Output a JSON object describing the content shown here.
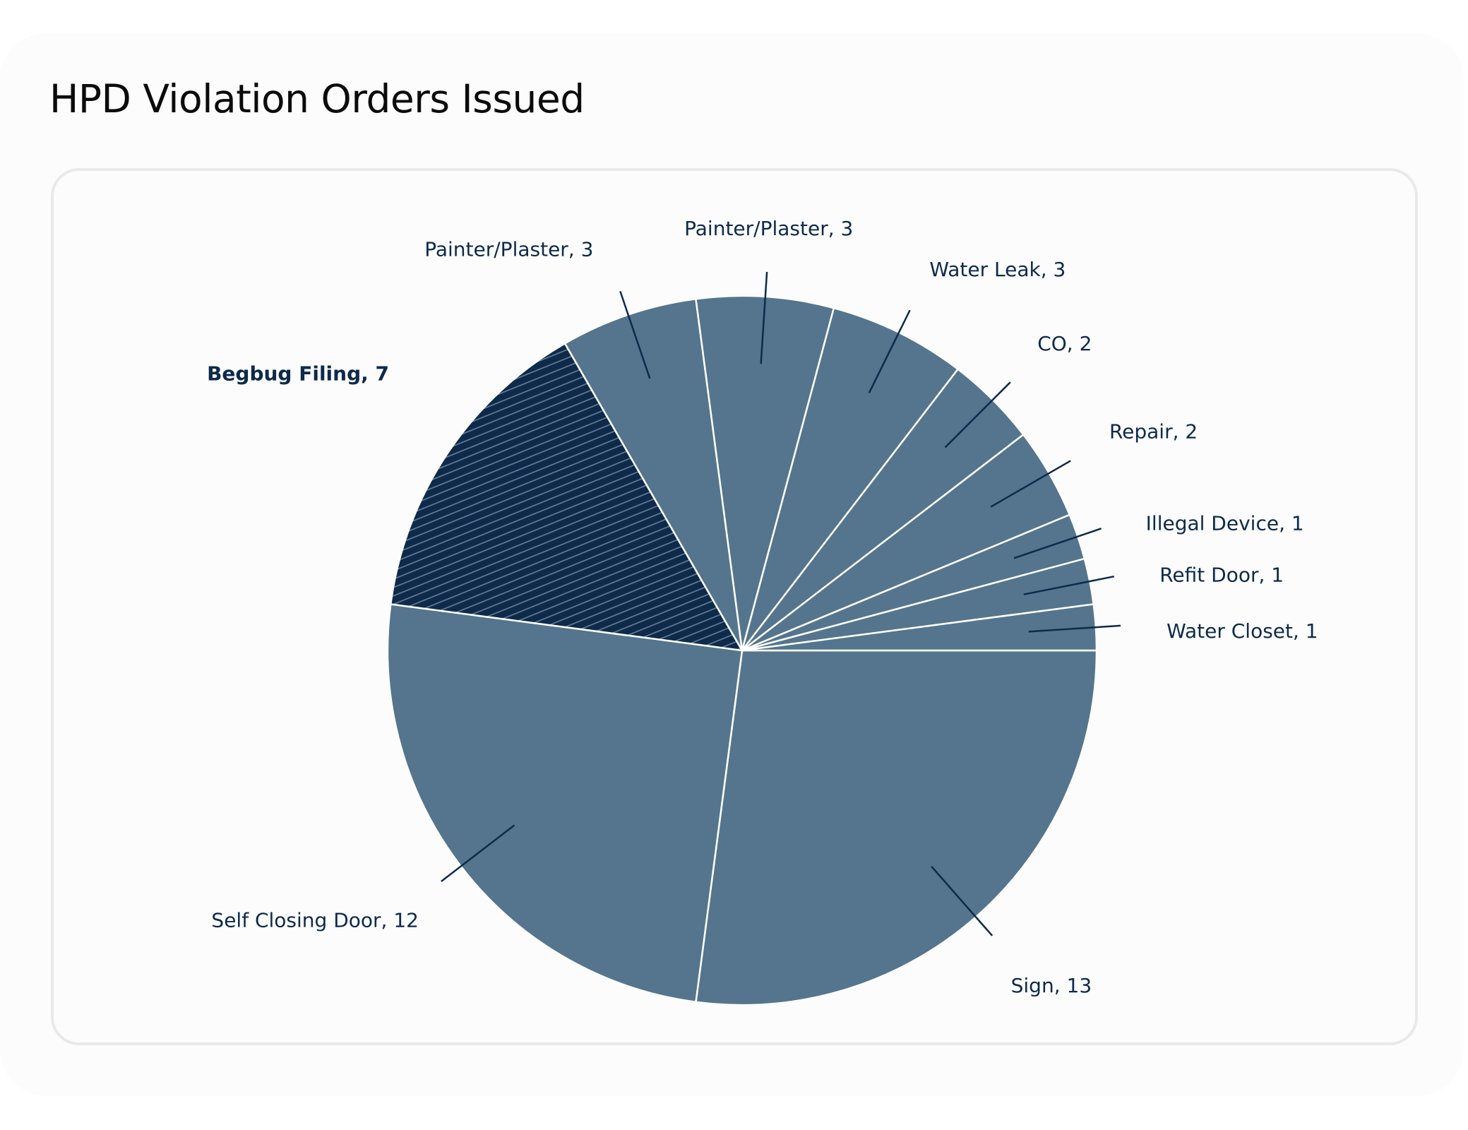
{
  "title": "HPD Violation Orders Issued",
  "colors": {
    "slice": "#54758d",
    "highlight": "#0d2a4b",
    "hatch": "#6b7f96",
    "label": "#0d2a4b",
    "divider": "#ffffff"
  },
  "chart_data": {
    "type": "pie",
    "title": "HPD Violation Orders Issued",
    "slices": [
      {
        "label": "Sign, 13",
        "name": "Sign",
        "value": 13
      },
      {
        "label": "Self Closing Door, 12",
        "name": "Self Closing Door",
        "value": 12
      },
      {
        "label": "Begbug Filing, 7",
        "name": "Begbug Filing",
        "value": 7,
        "highlighted": true
      },
      {
        "label": "Painter/Plaster, 3",
        "name": "Painter/Plaster",
        "value": 3
      },
      {
        "label": "Painter/Plaster, 3",
        "name": "Painter/Plaster",
        "value": 3
      },
      {
        "label": "Water Leak, 3",
        "name": "Water Leak",
        "value": 3
      },
      {
        "label": "CO, 2",
        "name": "CO",
        "value": 2
      },
      {
        "label": "Repair, 2",
        "name": "Repair",
        "value": 2
      },
      {
        "label": "Illegal Device, 1",
        "name": "Illegal Device",
        "value": 1
      },
      {
        "label": "Refit Door, 1",
        "name": "Refit Door",
        "value": 1
      },
      {
        "label": "Water Closet, 1",
        "name": "Water Closet",
        "value": 1
      }
    ]
  }
}
